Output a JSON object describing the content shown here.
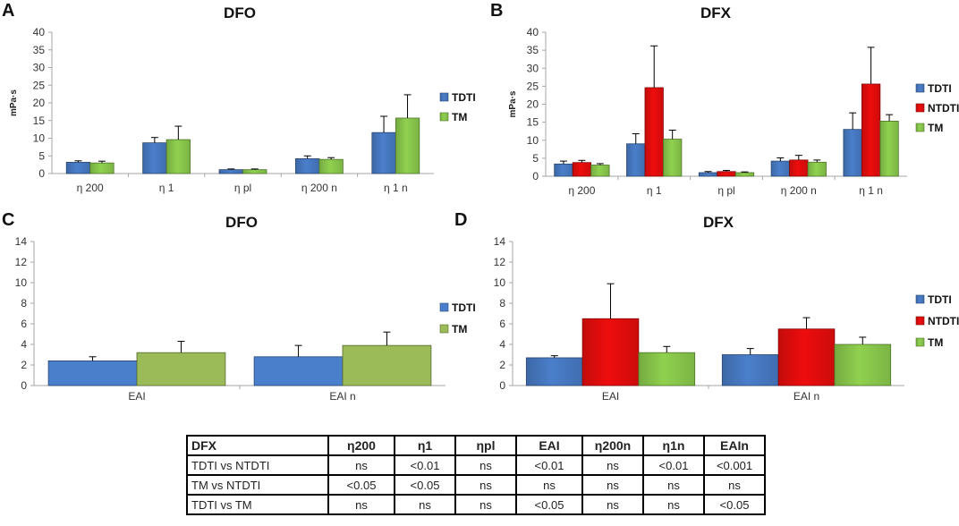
{
  "colors": {
    "TDTI": "#4a7fcb",
    "NTDTI": "#ee0d0d",
    "TM": "#8fd14f",
    "TM_C": "#9bbb59",
    "axis": "#a6a6a6"
  },
  "chart_data": [
    {
      "panel": "A",
      "title": "DFO",
      "type": "bar",
      "ylabel": "mPa·s",
      "ylim": [
        0,
        40
      ],
      "yticks": [
        0,
        5,
        10,
        15,
        20,
        25,
        30,
        35,
        40
      ],
      "categories": [
        "η 200",
        "η 1",
        "η pl",
        "η 200 n",
        "η 1 n"
      ],
      "series": [
        {
          "name": "TDTI",
          "color_key": "TDTI",
          "values": [
            3.2,
            8.7,
            1.1,
            4.2,
            11.6
          ],
          "errors": [
            0.4,
            1.5,
            0.2,
            0.8,
            4.6
          ]
        },
        {
          "name": "TM",
          "color_key": "TM",
          "values": [
            3.0,
            9.6,
            1.1,
            4.0,
            15.7
          ],
          "errors": [
            0.5,
            3.8,
            0.2,
            0.5,
            6.6
          ]
        }
      ],
      "legend": "right"
    },
    {
      "panel": "B",
      "title": "DFX",
      "type": "bar",
      "ylabel": "mPa·s",
      "ylim": [
        0,
        40
      ],
      "yticks": [
        0,
        5,
        10,
        15,
        20,
        25,
        30,
        35,
        40
      ],
      "categories": [
        "η 200",
        "η 1",
        "η pl",
        "η 200 n",
        "η 1 n"
      ],
      "series": [
        {
          "name": "TDTI",
          "color_key": "TDTI",
          "values": [
            3.4,
            9.0,
            1.0,
            4.2,
            13.0
          ],
          "errors": [
            0.8,
            2.8,
            0.3,
            0.9,
            4.6
          ]
        },
        {
          "name": "NTDTI",
          "color_key": "NTDTI",
          "values": [
            3.8,
            24.6,
            1.3,
            4.5,
            25.6
          ],
          "errors": [
            0.6,
            11.6,
            0.3,
            1.3,
            10.2
          ]
        },
        {
          "name": "TM",
          "color_key": "TM",
          "values": [
            3.1,
            10.3,
            1.0,
            3.9,
            15.3
          ],
          "errors": [
            0.4,
            2.5,
            0.2,
            0.6,
            1.8
          ]
        }
      ],
      "legend": "right"
    },
    {
      "panel": "C",
      "title": "DFO",
      "type": "bar",
      "ylim": [
        0,
        14
      ],
      "yticks": [
        0,
        2,
        4,
        6,
        8,
        10,
        12,
        14
      ],
      "categories": [
        "EAI",
        "EAI n"
      ],
      "series": [
        {
          "name": "TDTI",
          "color_key": "TDTI",
          "values": [
            2.4,
            2.8
          ],
          "errors": [
            0.4,
            1.1
          ]
        },
        {
          "name": "TM",
          "color_key": "TM_C",
          "values": [
            3.2,
            3.9
          ],
          "errors": [
            1.1,
            1.3
          ]
        }
      ],
      "legend": "right"
    },
    {
      "panel": "D",
      "title": "DFX",
      "type": "bar",
      "ylim": [
        0,
        14
      ],
      "yticks": [
        0,
        2,
        4,
        6,
        8,
        10,
        12,
        14
      ],
      "categories": [
        "EAI",
        "EAI n"
      ],
      "series": [
        {
          "name": "TDTI",
          "color_key": "TDTI",
          "values": [
            2.7,
            3.0
          ],
          "errors": [
            0.2,
            0.6
          ]
        },
        {
          "name": "NTDTI",
          "color_key": "NTDTI",
          "values": [
            6.5,
            5.5
          ],
          "errors": [
            3.4,
            1.1
          ]
        },
        {
          "name": "TM",
          "color_key": "TM",
          "values": [
            3.2,
            4.0
          ],
          "errors": [
            0.6,
            0.7
          ]
        }
      ],
      "legend": "right"
    }
  ],
  "table": {
    "headers": [
      "DFX",
      "η200",
      "η1",
      "ηpl",
      "EAI",
      "η200n",
      "η1n",
      "EAIn"
    ],
    "rows": [
      [
        "TDTI vs NTDTI",
        "ns",
        "<0.01",
        "ns",
        "<0.01",
        "ns",
        "<0.01",
        "<0.001"
      ],
      [
        "TM vs NTDTI",
        "<0.05",
        "<0.05",
        "ns",
        "ns",
        "ns",
        "ns",
        "ns"
      ],
      [
        "TDTI vs TM",
        "ns",
        "ns",
        "ns",
        "<0.05",
        "ns",
        "ns",
        "<0.05"
      ]
    ]
  }
}
